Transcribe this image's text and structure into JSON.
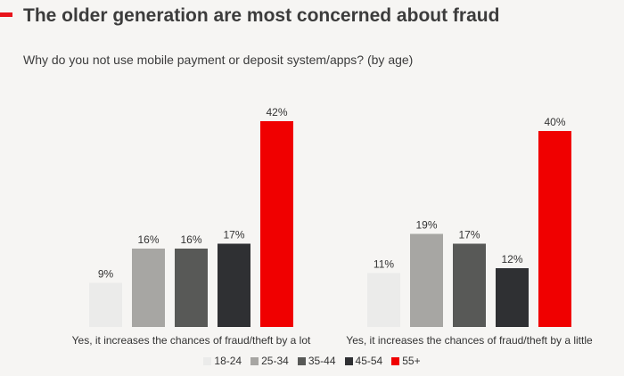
{
  "header": {
    "title": "The older generation are most concerned about fraud",
    "subtitle": "Why do you not use mobile payment or deposit system/apps? (by age)",
    "accent_color": "#e8141b"
  },
  "chart_data": {
    "type": "bar",
    "categories": [
      "Yes, it increases the chances of fraud/theft by a lot",
      "Yes, it increases the chances of fraud/theft by a little"
    ],
    "series": [
      {
        "name": "18-24",
        "color": "#ebebea",
        "values": [
          9,
          11
        ],
        "labels": [
          "9%",
          "11%"
        ]
      },
      {
        "name": "25-34",
        "color": "#a7a6a3",
        "values": [
          16,
          19
        ],
        "labels": [
          "16%",
          "19%"
        ]
      },
      {
        "name": "35-44",
        "color": "#585957",
        "values": [
          16,
          17
        ],
        "labels": [
          "16%",
          "17%"
        ]
      },
      {
        "name": "45-54",
        "color": "#2f3033",
        "values": [
          17,
          12
        ],
        "labels": [
          "17%",
          "12%"
        ]
      },
      {
        "name": "55+",
        "color": "#f00000",
        "values": [
          42,
          40
        ],
        "labels": [
          "42%",
          "40%"
        ]
      }
    ],
    "ylim": [
      0,
      42
    ],
    "grid": false,
    "legend_position": "bottom"
  }
}
